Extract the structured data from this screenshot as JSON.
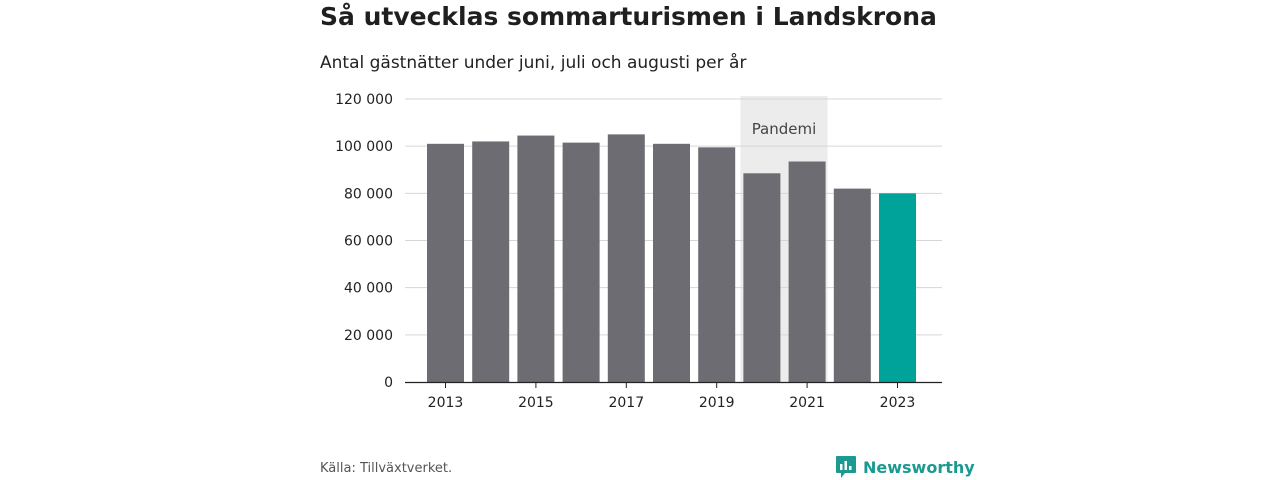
{
  "title": "Så utvecklas sommarturismen i Landskrona",
  "subtitle": "Antal gästnätter under juni, juli och augusti per år",
  "source": "Källa: Tillväxtverket.",
  "brand": {
    "name": "Newsworthy",
    "icon": "newsworthy-logo-icon",
    "color": "#1a9a90"
  },
  "chart_data": {
    "type": "bar",
    "categories": [
      "2013",
      "2014",
      "2015",
      "2016",
      "2017",
      "2018",
      "2019",
      "2020",
      "2021",
      "2022",
      "2023"
    ],
    "values": [
      101000,
      102000,
      104500,
      101500,
      105000,
      101000,
      99500,
      88500,
      93500,
      82000,
      80000
    ],
    "x_tick_labels": [
      "2013",
      "2015",
      "2017",
      "2019",
      "2021",
      "2023"
    ],
    "y_ticks": [
      "0",
      "20 000",
      "40 000",
      "60 000",
      "80 000",
      "100 000",
      "120 000"
    ],
    "ylim": [
      0,
      120000
    ],
    "xlabel": "",
    "ylabel": "",
    "grid": true,
    "bar_color": "#6d6c72",
    "highlight": {
      "category": "2023",
      "color": "#00a39a"
    },
    "annotation": {
      "label": "Pandemi",
      "categories": [
        "2020",
        "2021"
      ],
      "shade_color": "#ececec"
    }
  }
}
